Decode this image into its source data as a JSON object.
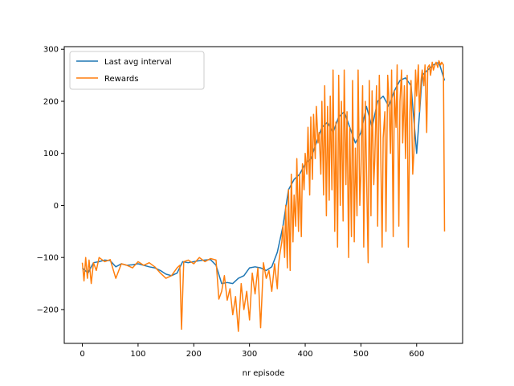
{
  "chart_data": {
    "type": "line",
    "title": "",
    "xlabel": "nr episode",
    "ylabel": "",
    "xlim": [
      -32.5,
      682.5
    ],
    "ylim": [
      -265,
      305
    ],
    "xticks": [
      0,
      100,
      200,
      300,
      400,
      500,
      600
    ],
    "yticks": [
      -200,
      -100,
      0,
      100,
      200,
      300
    ],
    "grid": false,
    "legend_position": "upper-left",
    "legend": [
      "Last avg interval",
      "Rewards"
    ],
    "colors": {
      "Last avg interval": "#1f77b4",
      "Rewards": "#ff7f0e"
    },
    "series": [
      {
        "name": "Last avg interval",
        "x": [
          0,
          10,
          20,
          30,
          40,
          50,
          60,
          70,
          80,
          90,
          100,
          110,
          120,
          130,
          140,
          150,
          160,
          170,
          180,
          190,
          200,
          210,
          220,
          230,
          240,
          250,
          260,
          270,
          280,
          290,
          300,
          310,
          320,
          330,
          340,
          350,
          360,
          370,
          380,
          390,
          400,
          410,
          420,
          430,
          440,
          450,
          460,
          470,
          480,
          490,
          500,
          510,
          520,
          530,
          540,
          550,
          560,
          570,
          580,
          590,
          600,
          610,
          620,
          630,
          640,
          650
        ],
        "y": [
          -120,
          -130,
          -110,
          -108,
          -105,
          -106,
          -118,
          -112,
          -115,
          -114,
          -112,
          -115,
          -118,
          -120,
          -125,
          -132,
          -135,
          -130,
          -108,
          -110,
          -108,
          -106,
          -105,
          -104,
          -115,
          -150,
          -148,
          -150,
          -140,
          -135,
          -120,
          -118,
          -120,
          -125,
          -118,
          -90,
          -40,
          30,
          50,
          60,
          80,
          90,
          120,
          150,
          160,
          140,
          170,
          180,
          150,
          120,
          140,
          190,
          150,
          200,
          210,
          190,
          220,
          240,
          245,
          230,
          100,
          250,
          260,
          270,
          275,
          240
        ]
      },
      {
        "name": "Rewards",
        "x": [
          0,
          3,
          6,
          9,
          12,
          16,
          20,
          25,
          30,
          40,
          50,
          60,
          70,
          80,
          90,
          100,
          110,
          120,
          130,
          140,
          150,
          160,
          170,
          175,
          178,
          182,
          190,
          200,
          210,
          220,
          230,
          240,
          245,
          250,
          255,
          260,
          265,
          270,
          275,
          280,
          285,
          290,
          295,
          300,
          305,
          310,
          315,
          320,
          325,
          330,
          335,
          340,
          345,
          350,
          352,
          355,
          358,
          360,
          363,
          365,
          368,
          370,
          373,
          375,
          378,
          380,
          383,
          385,
          388,
          390,
          393,
          395,
          398,
          400,
          403,
          405,
          408,
          410,
          413,
          415,
          418,
          420,
          423,
          425,
          428,
          430,
          433,
          435,
          438,
          440,
          443,
          445,
          448,
          450,
          453,
          455,
          458,
          460,
          463,
          465,
          468,
          470,
          473,
          475,
          478,
          480,
          483,
          485,
          488,
          490,
          493,
          495,
          498,
          500,
          503,
          505,
          508,
          510,
          513,
          515,
          518,
          520,
          523,
          525,
          528,
          530,
          533,
          535,
          538,
          540,
          543,
          545,
          548,
          550,
          553,
          555,
          558,
          560,
          563,
          565,
          568,
          570,
          573,
          575,
          578,
          580,
          583,
          585,
          588,
          590,
          593,
          595,
          598,
          600,
          603,
          605,
          608,
          610,
          613,
          615,
          618,
          620,
          623,
          625,
          628,
          630,
          633,
          635,
          638,
          640,
          643,
          645,
          648,
          650
        ],
        "y": [
          -110,
          -145,
          -100,
          -140,
          -105,
          -150,
          -110,
          -125,
          -100,
          -108,
          -104,
          -140,
          -112,
          -115,
          -120,
          -108,
          -115,
          -110,
          -118,
          -130,
          -140,
          -135,
          -120,
          -115,
          -238,
          -108,
          -105,
          -112,
          -100,
          -108,
          -102,
          -105,
          -180,
          -165,
          -135,
          -182,
          -160,
          -210,
          -175,
          -242,
          -150,
          -200,
          -165,
          -220,
          -130,
          -170,
          -120,
          -235,
          -110,
          -140,
          -125,
          -165,
          -112,
          -160,
          -115,
          -90,
          -70,
          -40,
          -100,
          0,
          -120,
          30,
          -125,
          60,
          -70,
          20,
          -40,
          90,
          -50,
          60,
          -60,
          80,
          30,
          100,
          60,
          150,
          20,
          170,
          50,
          175,
          90,
          190,
          120,
          140,
          60,
          200,
          20,
          230,
          -20,
          190,
          10,
          210,
          30,
          260,
          -50,
          160,
          -80,
          250,
          0,
          200,
          -30,
          260,
          40,
          180,
          -100,
          150,
          -60,
          240,
          -70,
          110,
          -20,
          260,
          0,
          60,
          230,
          -80,
          200,
          70,
          -110,
          240,
          -20,
          220,
          40,
          90,
          230,
          -40,
          250,
          140,
          -80,
          130,
          180,
          -50,
          250,
          210,
          100,
          260,
          -60,
          220,
          150,
          270,
          -40,
          200,
          260,
          120,
          230,
          90,
          250,
          -80,
          180,
          240,
          60,
          100,
          260,
          210,
          270,
          180,
          240,
          260,
          230,
          270,
          140,
          265,
          270,
          250,
          275,
          260,
          270,
          275,
          265,
          278,
          270,
          275,
          270,
          -50
        ]
      }
    ]
  }
}
